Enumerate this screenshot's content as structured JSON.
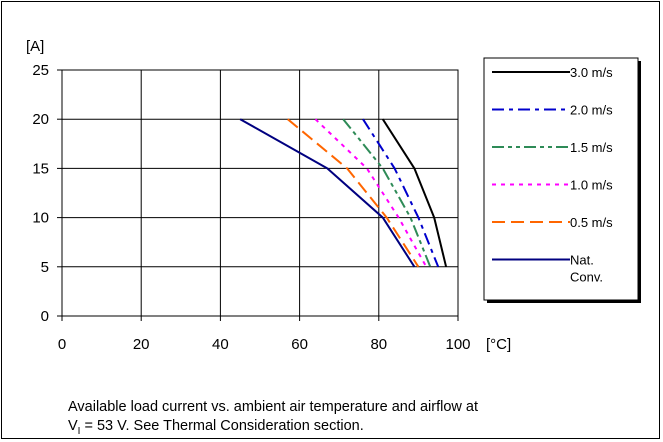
{
  "chart_data": {
    "type": "line",
    "ylabel": "[A]",
    "xlabel": "[°C]",
    "xlim": [
      0,
      100
    ],
    "ylim": [
      0,
      25
    ],
    "xticks": [
      "0",
      "20",
      "40",
      "60",
      "80",
      "100"
    ],
    "yticks": [
      "0",
      "5",
      "10",
      "15",
      "20",
      "25"
    ],
    "grid": true,
    "legend_position": "right",
    "series": [
      {
        "name": "3.0 m/s",
        "color": "#000000",
        "dash": "solid",
        "points": [
          [
            81,
            20
          ],
          [
            89,
            15
          ],
          [
            94,
            10
          ],
          [
            97,
            5
          ]
        ]
      },
      {
        "name": "2.0 m/s",
        "color": "#0000cc",
        "dash": "dashdot",
        "points": [
          [
            76,
            20
          ],
          [
            84,
            15
          ],
          [
            90,
            10
          ],
          [
            95,
            5
          ]
        ]
      },
      {
        "name": "1.5 m/s",
        "color": "#2e8b57",
        "dash": "dashdotdot",
        "points": [
          [
            71,
            20
          ],
          [
            81,
            15
          ],
          [
            88,
            10
          ],
          [
            93,
            5
          ]
        ]
      },
      {
        "name": "1.0 m/s",
        "color": "#ff00ff",
        "dash": "dot",
        "points": [
          [
            64,
            20
          ],
          [
            77,
            15
          ],
          [
            85,
            10
          ],
          [
            92,
            5
          ]
        ]
      },
      {
        "name": "0.5 m/s",
        "color": "#ff6600",
        "dash": "dash",
        "points": [
          [
            57,
            20
          ],
          [
            72,
            15
          ],
          [
            82,
            10
          ],
          [
            90,
            5
          ]
        ]
      },
      {
        "name": "Nat.\nConv.",
        "color": "#000080",
        "dash": "solid",
        "points": [
          [
            45,
            20
          ],
          [
            67,
            15
          ],
          [
            81,
            10
          ],
          [
            89,
            5
          ]
        ]
      }
    ]
  },
  "caption": {
    "line1": "Available load current vs. ambient air temperature and airflow at",
    "line2_prefix": "V",
    "line2_sub": "I",
    "line2_suffix": " = 53 V. See Thermal Consideration section."
  }
}
